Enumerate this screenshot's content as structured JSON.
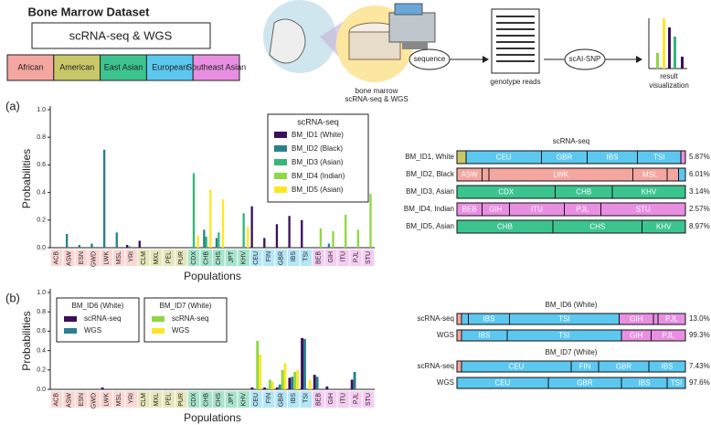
{
  "header": {
    "title": "Bone Marrow Dataset",
    "box": "scRNA-seq & WGS",
    "populations": [
      "African",
      "American",
      "East Asian",
      "European",
      "Southeast Asian"
    ],
    "population_colors": [
      "#f4a6a0",
      "#c8c86a",
      "#3cc48f",
      "#5cc8f0",
      "#e88fe2"
    ],
    "sample": "bone marrow",
    "sample_sub": "scRNA-seq & WGS",
    "step1": "sequence",
    "reads": "genotype reads",
    "step2": "scAI-SNP",
    "result": "result",
    "result_sub": "visualization"
  },
  "panels": [
    "(a)",
    "(b)"
  ],
  "chart_data": [
    {
      "type": "bar",
      "ylabel": "Probabilities",
      "xlabel": "Populations",
      "legend_title": "scRNA-seq",
      "categories": [
        "ACB",
        "ASW",
        "ESN",
        "GWD",
        "LWK",
        "MSL",
        "YRI",
        "CLM",
        "MXL",
        "PEL",
        "PUR",
        "CDX",
        "CHB",
        "CHS",
        "JPT",
        "KHV",
        "CEU",
        "FIN",
        "GBR",
        "IBS",
        "TSI",
        "BEB",
        "GIH",
        "ITU",
        "PJL",
        "STU"
      ],
      "category_colors": [
        "#f4a6a0",
        "#f4a6a0",
        "#f4a6a0",
        "#f4a6a0",
        "#f4a6a0",
        "#f4a6a0",
        "#f4a6a0",
        "#c8c86a",
        "#c8c86a",
        "#c8c86a",
        "#c8c86a",
        "#3cc48f",
        "#3cc48f",
        "#3cc48f",
        "#3cc48f",
        "#3cc48f",
        "#5cc8f0",
        "#5cc8f0",
        "#5cc8f0",
        "#5cc8f0",
        "#5cc8f0",
        "#e88fe2",
        "#e88fe2",
        "#e88fe2",
        "#e88fe2",
        "#e88fe2"
      ],
      "ylim": [
        0,
        1
      ],
      "yticks": [
        {
          "value": 0,
          "label": "0.0"
        },
        {
          "value": 0.2,
          "label": "0.2"
        },
        {
          "value": 0.4,
          "label": "0.4"
        },
        {
          "value": 0.6,
          "label": "0.6"
        },
        {
          "value": 0.8,
          "label": "0.8"
        },
        {
          "value": 1,
          "label": "1.0"
        }
      ],
      "series": [
        {
          "name": "BM_ID1 (White)",
          "color": "#3b0f5a",
          "values": [
            0,
            0,
            0,
            0,
            0,
            0,
            0.02,
            0.05,
            0,
            0,
            0,
            0,
            0,
            0,
            0,
            0,
            0.3,
            0.07,
            0.17,
            0.23,
            0.2,
            0,
            0,
            0,
            0,
            0
          ]
        },
        {
          "name": "BM_ID2 (Black)",
          "color": "#2a7f8f",
          "values": [
            0,
            0.1,
            0.02,
            0.03,
            0.71,
            0.11,
            0.01,
            0,
            0,
            0,
            0,
            0,
            0.13,
            0.07,
            0,
            0,
            0,
            0,
            0,
            0,
            0,
            0,
            0.03,
            0,
            0,
            0
          ]
        },
        {
          "name": "BM_ID3 (Asian)",
          "color": "#35b779",
          "values": [
            0,
            0,
            0,
            0,
            0,
            0,
            0,
            0,
            0,
            0,
            0,
            0.54,
            0.08,
            0.11,
            0,
            0.25,
            0,
            0,
            0,
            0,
            0,
            0,
            0,
            0,
            0,
            0
          ]
        },
        {
          "name": "BM_ID4 (Indian)",
          "color": "#8fd744",
          "values": [
            0,
            0,
            0,
            0,
            0,
            0,
            0,
            0,
            0,
            0,
            0,
            0,
            0,
            0,
            0,
            0,
            0,
            0,
            0,
            0,
            0,
            0.14,
            0.12,
            0.24,
            0.13,
            0.39
          ]
        },
        {
          "name": "BM_ID5 (Asian)",
          "color": "#fde725",
          "values": [
            0,
            0,
            0,
            0,
            0,
            0,
            0,
            0,
            0,
            0,
            0,
            0.09,
            0.42,
            0.35,
            0,
            0.15,
            0,
            0,
            0,
            0,
            0,
            0,
            0,
            0,
            0,
            0
          ]
        }
      ]
    },
    {
      "type": "stacked_hbar",
      "title": "scRNA-seq",
      "rows": [
        {
          "name": "BM_ID1, White",
          "score": {
            "value": 5.87,
            "label": "5.87%"
          },
          "segments": [
            {
              "label": null,
              "value": 0.04,
              "color": "#c8c86a"
            },
            {
              "label": "CEU",
              "value": 0.33,
              "color": "#5cc8f0"
            },
            {
              "label": "GBR",
              "value": 0.2,
              "color": "#5cc8f0"
            },
            {
              "label": "IBS",
              "value": 0.22,
              "color": "#5cc8f0"
            },
            {
              "label": "TSI",
              "value": 0.19,
              "color": "#5cc8f0"
            },
            {
              "label": null,
              "value": 0.02,
              "color": "#e88fe2"
            }
          ]
        },
        {
          "name": "BM_ID2, Black",
          "score": {
            "value": 6.01,
            "label": "6.01%"
          },
          "segments": [
            {
              "label": "ASW",
              "value": 0.11,
              "color": "#f4a6a0"
            },
            {
              "label": null,
              "value": 0.03,
              "color": "#f4a6a0"
            },
            {
              "label": "LWK",
              "value": 0.63,
              "color": "#f4a6a0"
            },
            {
              "label": "MSL",
              "value": 0.15,
              "color": "#f4a6a0"
            },
            {
              "label": null,
              "value": 0.05,
              "color": "#f4a6a0"
            },
            {
              "label": null,
              "value": 0.03,
              "color": "#5cc8f0"
            }
          ]
        },
        {
          "name": "BM_ID3, Asian",
          "score": {
            "value": 3.14,
            "label": "3.14%"
          },
          "segments": [
            {
              "label": "CDX",
              "value": 0.43,
              "color": "#3cc48f"
            },
            {
              "label": "CHB",
              "value": 0.25,
              "color": "#3cc48f"
            },
            {
              "label": "KHV",
              "value": 0.32,
              "color": "#3cc48f"
            }
          ]
        },
        {
          "name": "BM_ID4, Indian",
          "score": {
            "value": 2.57,
            "label": "2.57%"
          },
          "segments": [
            {
              "label": "BEB",
              "value": 0.11,
              "color": "#e88fe2"
            },
            {
              "label": "GIH",
              "value": 0.12,
              "color": "#e88fe2"
            },
            {
              "label": "ITU",
              "value": 0.24,
              "color": "#e88fe2"
            },
            {
              "label": "PJL",
              "value": 0.16,
              "color": "#e88fe2"
            },
            {
              "label": "STU",
              "value": 0.37,
              "color": "#e88fe2"
            }
          ]
        },
        {
          "name": "BM_ID5, Asian",
          "score": {
            "value": 8.97,
            "label": "8.97%"
          },
          "segments": [
            {
              "label": "CHB",
              "value": 0.42,
              "color": "#3cc48f"
            },
            {
              "label": "CHS",
              "value": 0.39,
              "color": "#3cc48f"
            },
            {
              "label": "KHV",
              "value": 0.19,
              "color": "#3cc48f"
            }
          ]
        }
      ]
    },
    {
      "type": "bar",
      "ylabel": "Probabilities",
      "xlabel": "Populations",
      "categories": [
        "ACB",
        "ASW",
        "ESN",
        "GWD",
        "LWK",
        "MSL",
        "YRI",
        "CLM",
        "MXL",
        "PEL",
        "PUR",
        "CDX",
        "CHB",
        "CHS",
        "JPT",
        "KHV",
        "CEU",
        "FIN",
        "GBR",
        "IBS",
        "TSI",
        "BEB",
        "GIH",
        "ITU",
        "PJL",
        "STU"
      ],
      "category_colors": [
        "#f4a6a0",
        "#f4a6a0",
        "#f4a6a0",
        "#f4a6a0",
        "#f4a6a0",
        "#f4a6a0",
        "#f4a6a0",
        "#c8c86a",
        "#c8c86a",
        "#c8c86a",
        "#c8c86a",
        "#3cc48f",
        "#3cc48f",
        "#3cc48f",
        "#3cc48f",
        "#3cc48f",
        "#5cc8f0",
        "#5cc8f0",
        "#5cc8f0",
        "#5cc8f0",
        "#5cc8f0",
        "#e88fe2",
        "#e88fe2",
        "#e88fe2",
        "#e88fe2",
        "#e88fe2"
      ],
      "ylim": [
        0,
        1
      ],
      "yticks": [
        {
          "value": 0,
          "label": "0.0"
        },
        {
          "value": 0.2,
          "label": "0.2"
        },
        {
          "value": 0.4,
          "label": "0.4"
        },
        {
          "value": 0.6,
          "label": "0.6"
        },
        {
          "value": 0.8,
          "label": "0.8"
        },
        {
          "value": 1,
          "label": "1.0"
        }
      ],
      "groups": [
        {
          "title": "BM_ID6 (White)",
          "series": [
            {
              "name": "scRNA-seq",
              "color": "#3b0f5a",
              "values": [
                0,
                0,
                0,
                0,
                0.02,
                0,
                0,
                0,
                0,
                0,
                0,
                0,
                0,
                0,
                0,
                0,
                0.02,
                0.02,
                0.02,
                0.12,
                0.53,
                0.15,
                0.03,
                0,
                0.1,
                0
              ]
            },
            {
              "name": "WGS",
              "color": "#2a7f8f",
              "values": [
                0,
                0,
                0,
                0,
                0,
                0,
                0,
                0,
                0,
                0,
                0,
                0,
                0,
                0,
                0,
                0,
                0,
                0,
                0.05,
                0.13,
                0.52,
                0.13,
                0,
                0,
                0.18,
                0
              ]
            }
          ]
        },
        {
          "title": "BM_ID7 (White)",
          "series": [
            {
              "name": "scRNA-seq",
              "color": "#8fd744",
              "values": [
                0,
                0,
                0,
                0,
                0,
                0,
                0,
                0,
                0,
                0,
                0,
                0,
                0,
                0,
                0,
                0,
                0.5,
                0.1,
                0.2,
                0.18,
                0,
                0,
                0,
                0,
                0,
                0
              ]
            },
            {
              "name": "WGS",
              "color": "#fde725",
              "values": [
                0,
                0,
                0,
                0,
                0,
                0,
                0,
                0,
                0,
                0,
                0,
                0,
                0,
                0,
                0,
                0,
                0.36,
                0.08,
                0.27,
                0.2,
                0.1,
                0,
                0,
                0,
                0,
                0
              ]
            }
          ]
        }
      ]
    },
    {
      "type": "stacked_hbar",
      "title": "BM_ID6 (White)",
      "rows": [
        {
          "name": "scRNA-seq",
          "score": {
            "value": 13.0,
            "label": "13.0%"
          },
          "segments": [
            {
              "label": null,
              "value": 0.02,
              "color": "#f4a6a0"
            },
            {
              "label": null,
              "value": 0.03,
              "color": "#5cc8f0"
            },
            {
              "label": "IBS",
              "value": 0.18,
              "color": "#5cc8f0"
            },
            {
              "label": "TSI",
              "value": 0.48,
              "color": "#5cc8f0"
            },
            {
              "label": "GIH",
              "value": 0.15,
              "color": "#e88fe2"
            },
            {
              "label": null,
              "value": 0.02,
              "color": "#e88fe2"
            },
            {
              "label": "PJL",
              "value": 0.12,
              "color": "#e88fe2"
            }
          ]
        },
        {
          "name": "WGS",
          "score": {
            "value": 99.3,
            "label": "99.3%"
          },
          "segments": [
            {
              "label": null,
              "value": 0.02,
              "color": "#f4a6a0"
            },
            {
              "label": "IBS",
              "value": 0.2,
              "color": "#5cc8f0"
            },
            {
              "label": "TSI",
              "value": 0.5,
              "color": "#5cc8f0"
            },
            {
              "label": "GIH",
              "value": 0.13,
              "color": "#e88fe2"
            },
            {
              "label": "PJL",
              "value": 0.15,
              "color": "#e88fe2"
            }
          ]
        }
      ]
    },
    {
      "type": "stacked_hbar",
      "title": "BM_ID7 (White)",
      "rows": [
        {
          "name": "scRNA-seq",
          "score": {
            "value": 7.43,
            "label": "7.43%"
          },
          "segments": [
            {
              "label": null,
              "value": 0.02,
              "color": "#f4a6a0"
            },
            {
              "label": "CEU",
              "value": 0.48,
              "color": "#5cc8f0"
            },
            {
              "label": "FIN",
              "value": 0.12,
              "color": "#5cc8f0"
            },
            {
              "label": "GBR",
              "value": 0.22,
              "color": "#5cc8f0"
            },
            {
              "label": "IBS",
              "value": 0.16,
              "color": "#5cc8f0"
            }
          ]
        },
        {
          "name": "WGS",
          "score": {
            "value": 97.6,
            "label": "97.6%"
          },
          "segments": [
            {
              "label": "CEU",
              "value": 0.4,
              "color": "#5cc8f0"
            },
            {
              "label": "GBR",
              "value": 0.32,
              "color": "#5cc8f0"
            },
            {
              "label": "IBS",
              "value": 0.2,
              "color": "#5cc8f0"
            },
            {
              "label": "TSI",
              "value": 0.08,
              "color": "#5cc8f0"
            }
          ]
        }
      ]
    }
  ]
}
